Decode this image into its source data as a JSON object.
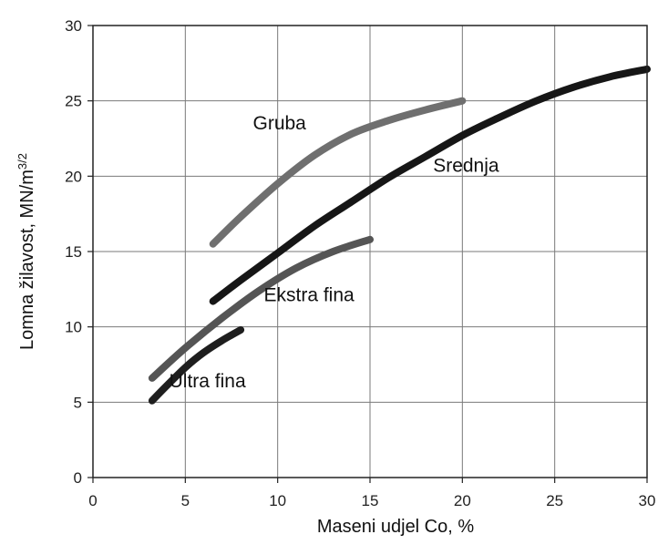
{
  "chart_data": {
    "type": "line",
    "title": "",
    "xlabel": "Maseni udjel Co, %",
    "ylabel": "Lomna žilavost, MN/m",
    "ylabel_sup": "3/2",
    "xlim": [
      0,
      30
    ],
    "ylim": [
      0,
      30
    ],
    "xticks": [
      0,
      5,
      10,
      15,
      20,
      25,
      30
    ],
    "yticks": [
      0,
      5,
      10,
      15,
      20,
      25,
      30
    ],
    "grid": true,
    "series": [
      {
        "name": "Gruba",
        "color": "#6f6f6f",
        "x": [
          6.5,
          8,
          10,
          12,
          14,
          16,
          18,
          20
        ],
        "y": [
          15.5,
          17.3,
          19.5,
          21.4,
          22.8,
          23.7,
          24.4,
          25.0
        ]
      },
      {
        "name": "Srednja",
        "color": "#161616",
        "x": [
          6.5,
          8,
          10,
          12,
          14,
          16,
          18,
          20,
          22,
          24,
          26,
          28,
          30
        ],
        "y": [
          11.7,
          13.1,
          14.9,
          16.7,
          18.3,
          19.9,
          21.3,
          22.7,
          23.9,
          25.0,
          25.9,
          26.6,
          27.1
        ]
      },
      {
        "name": "Ekstra fina",
        "color": "#555555",
        "x": [
          3.2,
          5,
          7,
          9,
          11,
          13,
          15
        ],
        "y": [
          6.6,
          8.6,
          10.6,
          12.4,
          13.9,
          15.0,
          15.8
        ]
      },
      {
        "name": "Ultra fina",
        "color": "#1e1e1e",
        "x": [
          3.2,
          4,
          5,
          6,
          7,
          8
        ],
        "y": [
          5.1,
          6.1,
          7.3,
          8.3,
          9.1,
          9.8
        ]
      }
    ]
  }
}
